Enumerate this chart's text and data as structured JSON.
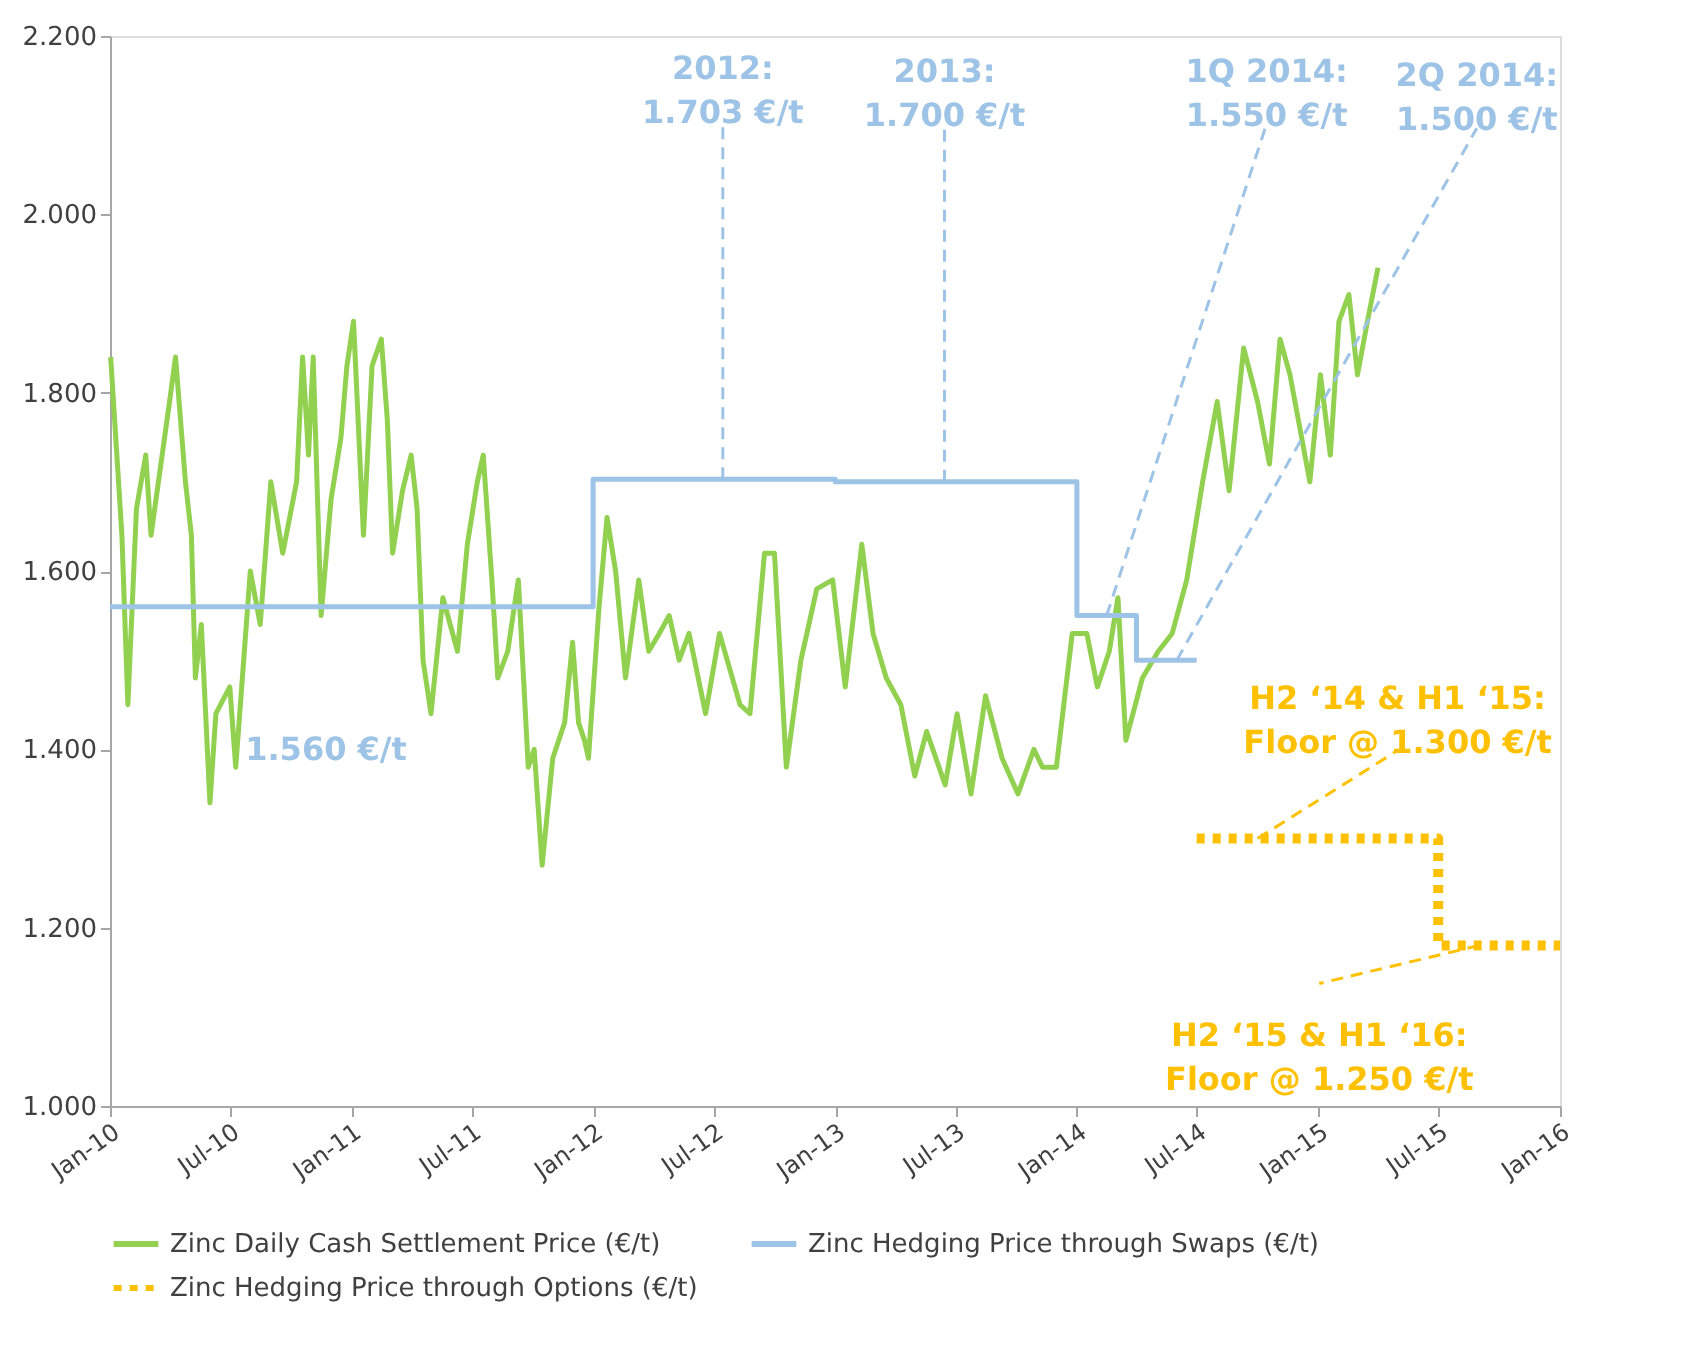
{
  "chart_data": {
    "type": "line",
    "xlim": [
      "2010-01-01",
      "2016-01-01"
    ],
    "xticks": [
      {
        "value": "2010-01-01",
        "label": "Jan-10"
      },
      {
        "value": "2010-07-01",
        "label": "Jul-10"
      },
      {
        "value": "2011-01-01",
        "label": "Jan-11"
      },
      {
        "value": "2011-07-01",
        "label": "Jul-11"
      },
      {
        "value": "2012-01-01",
        "label": "Jan-12"
      },
      {
        "value": "2012-07-01",
        "label": "Jul-12"
      },
      {
        "value": "2013-01-01",
        "label": "Jan-13"
      },
      {
        "value": "2013-07-01",
        "label": "Jul-13"
      },
      {
        "value": "2014-01-01",
        "label": "Jan-14"
      },
      {
        "value": "2014-07-01",
        "label": "Jul-14"
      },
      {
        "value": "2015-01-01",
        "label": "Jan-15"
      },
      {
        "value": "2015-07-01",
        "label": "Jul-15"
      },
      {
        "value": "2016-01-01",
        "label": "Jan-16"
      }
    ],
    "ylim": [
      1000,
      2200
    ],
    "yticks": [
      {
        "value": 1000,
        "label": "1.000"
      },
      {
        "value": 1200,
        "label": "1.200"
      },
      {
        "value": 1400,
        "label": "1.400"
      },
      {
        "value": 1600,
        "label": "1.600"
      },
      {
        "value": 1800,
        "label": "1.800"
      },
      {
        "value": 2000,
        "label": "2.000"
      },
      {
        "value": 2200,
        "label": "2.200"
      }
    ],
    "grid": false,
    "legend": "bottom",
    "series": [
      {
        "name": "Zinc Daily Cash Settlement Price (€/t)",
        "color": "#92d050",
        "line_style": "solid",
        "x": [
          "2010-01-02",
          "2010-01-19",
          "2010-01-28",
          "2010-02-10",
          "2010-02-24",
          "2010-03-04",
          "2010-04-01",
          "2010-04-10",
          "2010-04-25",
          "2010-05-04",
          "2010-05-10",
          "2010-05-19",
          "2010-06-01",
          "2010-06-10",
          "2010-07-01",
          "2010-07-10",
          "2010-08-01",
          "2010-08-16",
          "2010-09-01",
          "2010-09-19",
          "2010-10-10",
          "2010-10-19",
          "2010-10-28",
          "2010-11-04",
          "2010-11-16",
          "2010-12-01",
          "2010-12-16",
          "2010-12-25",
          "2011-01-04",
          "2011-01-19",
          "2011-02-01",
          "2011-02-15",
          "2011-02-24",
          "2011-03-04",
          "2011-03-19",
          "2011-04-01",
          "2011-04-10",
          "2011-04-19",
          "2011-05-01",
          "2011-05-19",
          "2011-06-10",
          "2011-06-25",
          "2011-07-10",
          "2011-07-19",
          "2011-08-01",
          "2011-08-10",
          "2011-08-25",
          "2011-09-10",
          "2011-09-25",
          "2011-10-04",
          "2011-10-16",
          "2011-11-01",
          "2011-11-19",
          "2011-12-01",
          "2011-12-10",
          "2011-12-19",
          "2011-12-25",
          "2012-01-10",
          "2012-01-22",
          "2012-02-04",
          "2012-02-19",
          "2012-03-10",
          "2012-03-25",
          "2012-04-10",
          "2012-04-25",
          "2012-05-10",
          "2012-05-25",
          "2012-06-19",
          "2012-07-10",
          "2012-08-10",
          "2012-08-25",
          "2012-09-16",
          "2012-10-01",
          "2012-10-19",
          "2012-11-10",
          "2012-12-04",
          "2012-12-28",
          "2013-01-16",
          "2013-02-10",
          "2013-02-27",
          "2013-03-19",
          "2013-04-10",
          "2013-05-01",
          "2013-05-19",
          "2013-06-16",
          "2013-07-04",
          "2013-07-25",
          "2013-08-16",
          "2013-09-10",
          "2013-10-04",
          "2013-10-28",
          "2013-11-10",
          "2013-12-01",
          "2013-12-25",
          "2014-01-16",
          "2014-02-01",
          "2014-02-19",
          "2014-03-04",
          "2014-03-16",
          "2014-04-10",
          "2014-05-04",
          "2014-05-25",
          "2014-06-16",
          "2014-07-10",
          "2014-08-01",
          "2014-08-19",
          "2014-09-10",
          "2014-10-01",
          "2014-10-19",
          "2014-11-04",
          "2014-11-19",
          "2014-12-04",
          "2014-12-19",
          "2015-01-04",
          "2015-01-19",
          "2015-02-01",
          "2015-02-16",
          "2015-03-01",
          "2015-03-16",
          "2015-04-01"
        ],
        "values": [
          1840,
          1640,
          1450,
          1670,
          1730,
          1640,
          1790,
          1840,
          1700,
          1640,
          1480,
          1540,
          1340,
          1440,
          1470,
          1380,
          1600,
          1540,
          1700,
          1620,
          1700,
          1840,
          1730,
          1840,
          1550,
          1680,
          1750,
          1830,
          1880,
          1640,
          1830,
          1860,
          1770,
          1620,
          1690,
          1730,
          1670,
          1500,
          1440,
          1570,
          1510,
          1630,
          1700,
          1730,
          1590,
          1480,
          1510,
          1590,
          1380,
          1400,
          1270,
          1390,
          1430,
          1520,
          1430,
          1410,
          1390,
          1560,
          1660,
          1600,
          1480,
          1590,
          1510,
          1530,
          1550,
          1500,
          1530,
          1440,
          1530,
          1450,
          1440,
          1620,
          1620,
          1380,
          1500,
          1580,
          1590,
          1470,
          1630,
          1530,
          1480,
          1450,
          1370,
          1420,
          1360,
          1440,
          1350,
          1460,
          1390,
          1350,
          1400,
          1380,
          1380,
          1530,
          1530,
          1470,
          1510,
          1570,
          1410,
          1480,
          1510,
          1530,
          1590,
          1700,
          1790,
          1690,
          1850,
          1790,
          1720,
          1860,
          1820,
          1760,
          1700,
          1820,
          1730,
          1880,
          1910,
          1820,
          1880,
          1940
        ]
      },
      {
        "name": "Zinc Hedging Price through Swaps (€/t)",
        "color": "#9dc3e6",
        "type": "step",
        "line_style": "solid",
        "x": [
          "2010-01-01",
          "2012-01-01",
          "2013-01-01",
          "2014-01-01",
          "2014-04-01",
          "2014-07-01"
        ],
        "values": [
          1560,
          1703,
          1700,
          1550,
          1500,
          1500
        ]
      },
      {
        "name": "Zinc Hedging Price through Options (€/t)",
        "color": "#ffc000",
        "type": "step",
        "line_style": "dotted",
        "x": [
          "2014-07-01",
          "2015-07-01",
          "2016-01-01"
        ],
        "values": [
          1300,
          1180,
          1180
        ]
      }
    ],
    "annotations": [
      "1.560 €/t",
      {
        "text": "2012:\n1.703 €/t",
        "x": "2012-07-15",
        "y": 1703
      },
      {
        "text": "2013:\n1.700 €/t",
        "x": "2013-06-15",
        "y": 1700
      },
      {
        "text": "1Q 2014:\n1.550 €/t",
        "x": "2014-02-15",
        "y": 1550
      },
      {
        "text": "2Q 2014:\n1.500 €/t",
        "x": "2014-06-01",
        "y": 1500
      },
      {
        "text": "H2 ‘14 & H1 ‘15:\nFloor @ 1.300 €/t",
        "x": "2014-10-01",
        "y": 1300
      },
      {
        "text": "H2 ‘15 & H1 ‘16:\nFloor @ 1.250 €/t",
        "x": "2015-09-01",
        "y": 1180
      }
    ]
  }
}
